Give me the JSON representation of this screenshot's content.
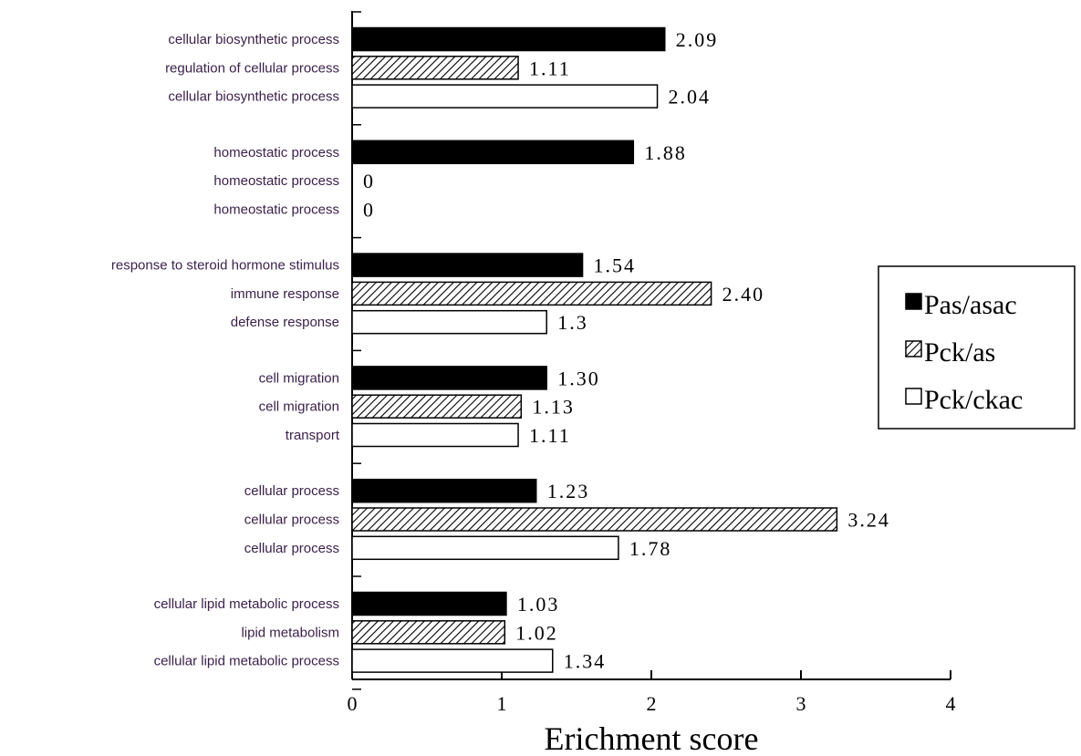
{
  "chart_data": {
    "type": "bar",
    "orientation": "horizontal",
    "title": "",
    "xlabel": "Erichment score",
    "ylabel": "",
    "xlim": [
      0,
      4
    ],
    "xticks": [
      0,
      1,
      2,
      3,
      4
    ],
    "grid": false,
    "legend_position": "right",
    "series": [
      {
        "name": "Pas/asac",
        "fill": "#000000"
      },
      {
        "name": "Pck/as",
        "fill": "hatch"
      },
      {
        "name": "Pck/ckac",
        "fill": "#ffffff"
      }
    ],
    "groups": [
      {
        "bars": [
          {
            "series": 0,
            "label": "cellular biosynthetic process",
            "value": 2.09,
            "value_text": "2.09"
          },
          {
            "series": 1,
            "label": "regulation of cellular process",
            "value": 1.11,
            "value_text": "1.11"
          },
          {
            "series": 2,
            "label": "cellular biosynthetic process",
            "value": 2.04,
            "value_text": "2.04"
          }
        ]
      },
      {
        "bars": [
          {
            "series": 0,
            "label": "homeostatic process",
            "value": 1.88,
            "value_text": "1.88"
          },
          {
            "series": 1,
            "label": "homeostatic process",
            "value": 0,
            "value_text": "0"
          },
          {
            "series": 2,
            "label": "homeostatic process",
            "value": 0,
            "value_text": "0"
          }
        ]
      },
      {
        "bars": [
          {
            "series": 0,
            "label": "response to steroid hormone stimulus",
            "value": 1.54,
            "value_text": "1.54"
          },
          {
            "series": 1,
            "label": "immune response",
            "value": 2.4,
            "value_text": "2.40"
          },
          {
            "series": 2,
            "label": "defense response",
            "value": 1.3,
            "value_text": "1.3"
          }
        ]
      },
      {
        "bars": [
          {
            "series": 0,
            "label": "cell migration",
            "value": 1.3,
            "value_text": "1.30"
          },
          {
            "series": 1,
            "label": "cell migration",
            "value": 1.13,
            "value_text": "1.13"
          },
          {
            "series": 2,
            "label": "transport",
            "value": 1.11,
            "value_text": "1.11"
          }
        ]
      },
      {
        "bars": [
          {
            "series": 0,
            "label": "cellular process",
            "value": 1.23,
            "value_text": "1.23"
          },
          {
            "series": 1,
            "label": "cellular process",
            "value": 3.24,
            "value_text": "3.24"
          },
          {
            "series": 2,
            "label": "cellular process",
            "value": 1.78,
            "value_text": "1.78"
          }
        ]
      },
      {
        "bars": [
          {
            "series": 0,
            "label": "cellular lipid metabolic process",
            "value": 1.03,
            "value_text": "1.03"
          },
          {
            "series": 1,
            "label": "lipid metabolism",
            "value": 1.02,
            "value_text": "1.02"
          },
          {
            "series": 2,
            "label": "cellular lipid metabolic process",
            "value": 1.34,
            "value_text": "1.34"
          }
        ]
      }
    ]
  }
}
